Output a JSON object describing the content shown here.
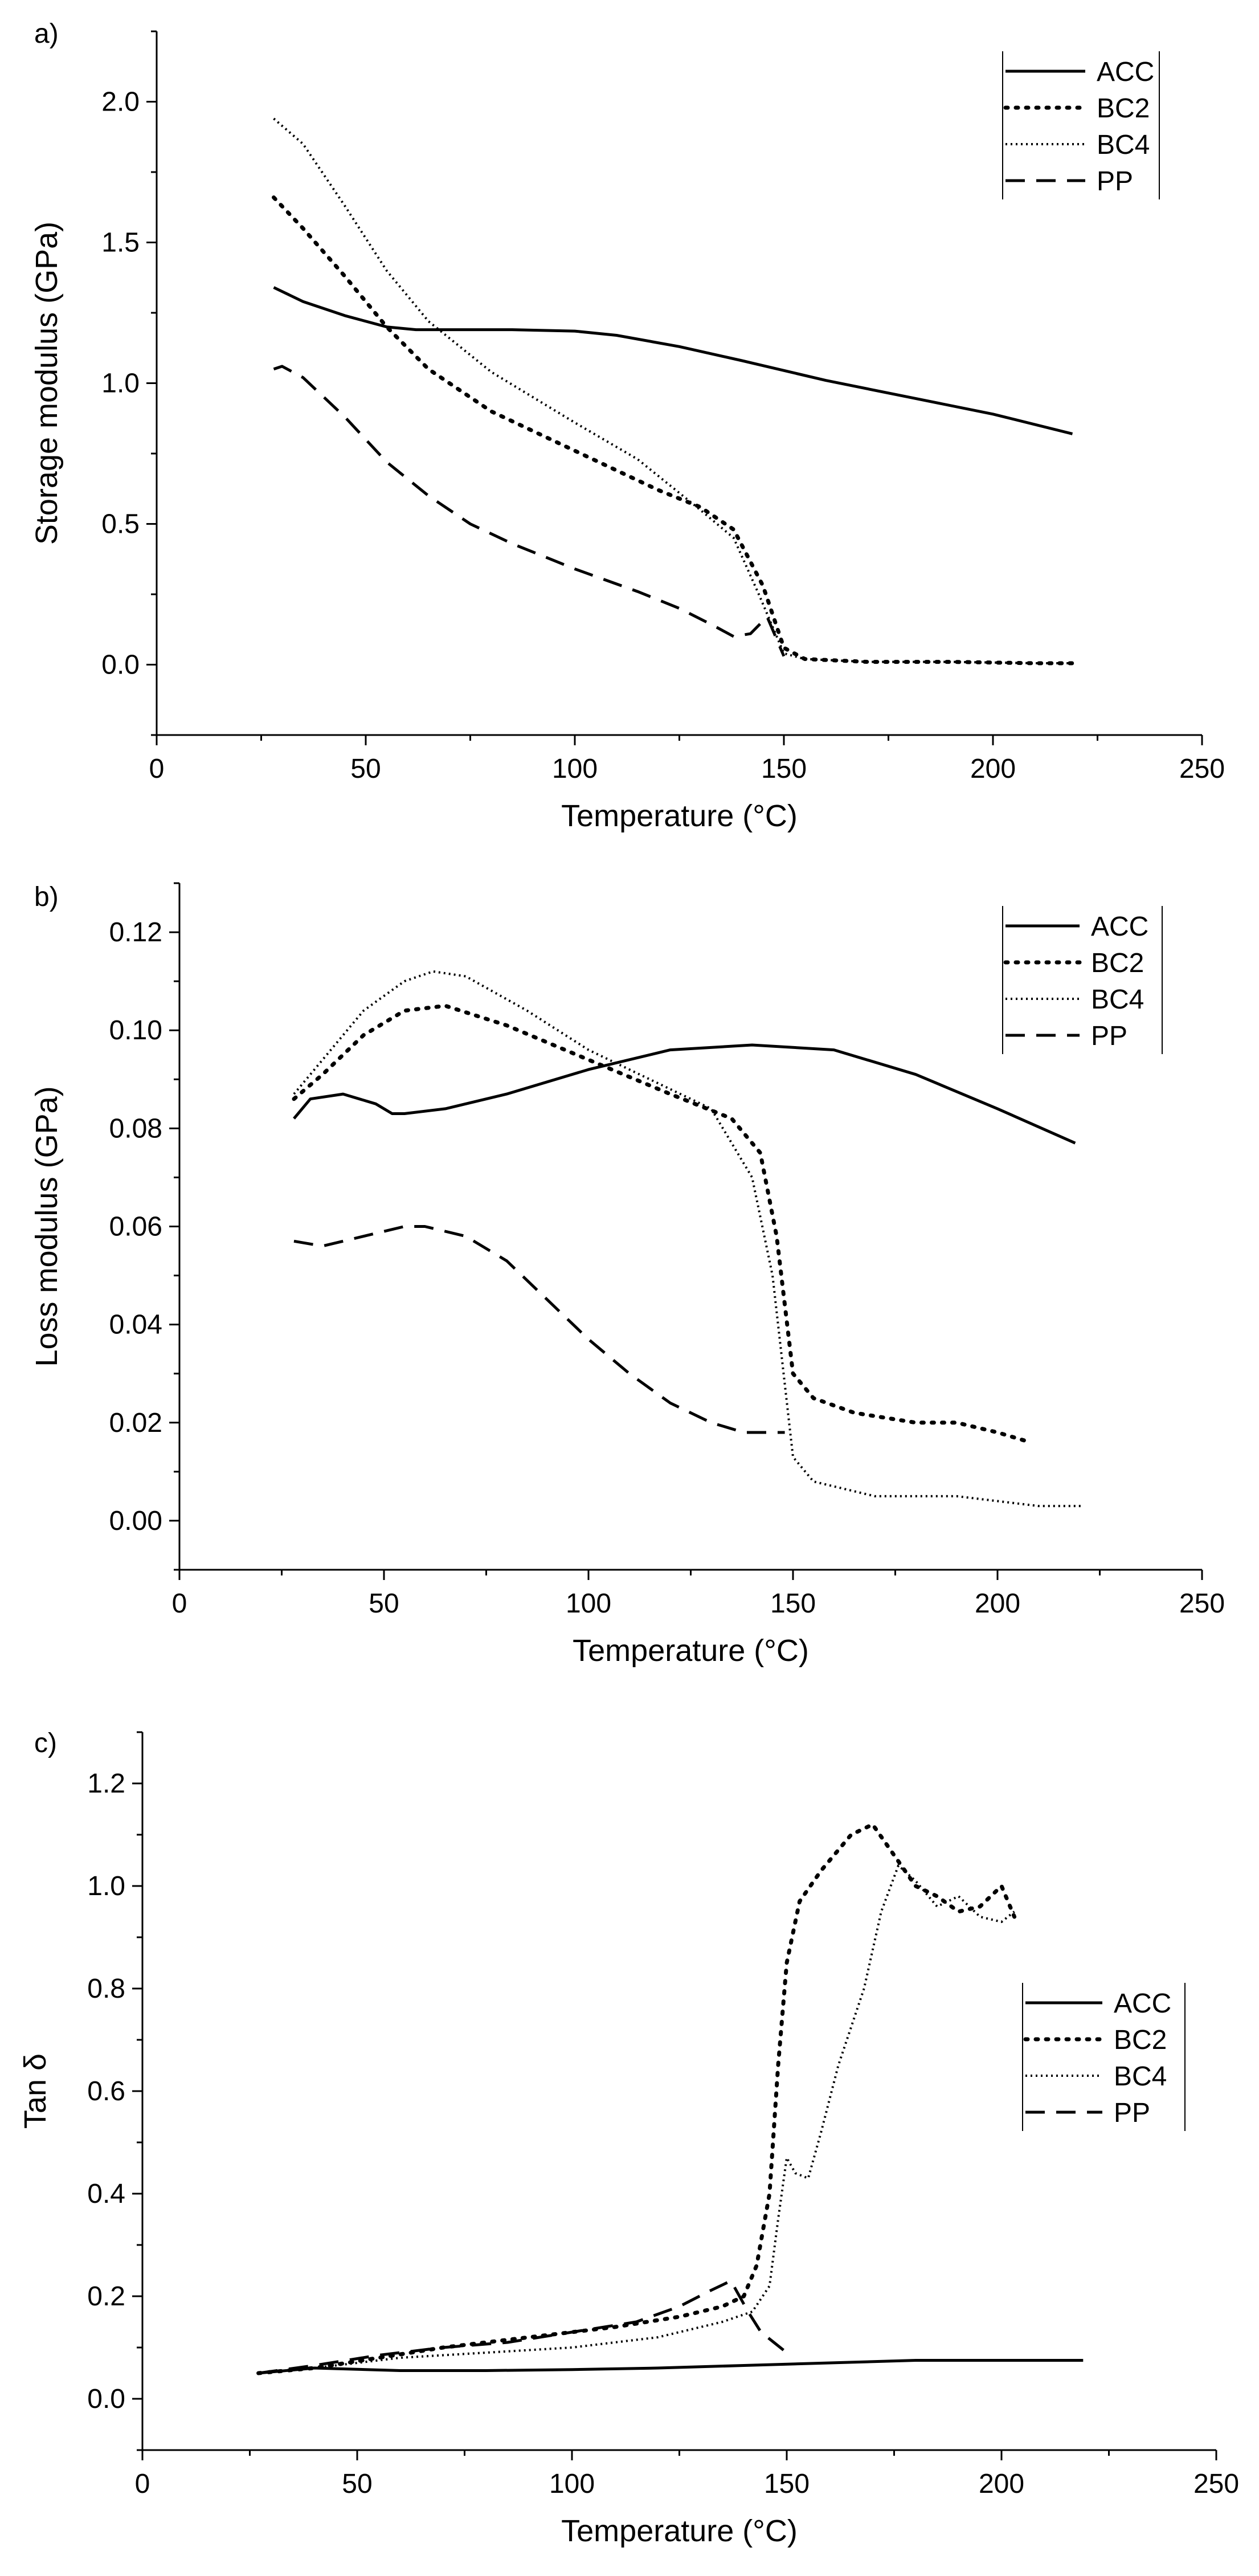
{
  "chart_data": [
    {
      "type": "line",
      "panel_label": "a)",
      "xlabel": "Temperature (°C)",
      "ylabel": "Storage modulus (GPa)",
      "xlim": [
        0,
        250
      ],
      "ylim": [
        -0.25,
        2.25
      ],
      "x_ticks": [
        0,
        50,
        100,
        150,
        200,
        250
      ],
      "x_tick_labels": [
        "0",
        "50",
        "100",
        "150",
        "200",
        "250"
      ],
      "y_ticks": [
        0.0,
        0.5,
        1.0,
        1.5,
        2.0
      ],
      "y_tick_labels": [
        "0.0",
        "0.5",
        "1.0",
        "1.5",
        "2.0"
      ],
      "grid": false,
      "legend_position": "top-right",
      "series": [
        {
          "name": "ACC",
          "style": "solid",
          "x": [
            28,
            35,
            45,
            55,
            62,
            70,
            85,
            100,
            110,
            125,
            140,
            160,
            180,
            200,
            219
          ],
          "y": [
            1.34,
            1.29,
            1.24,
            1.2,
            1.19,
            1.19,
            1.19,
            1.185,
            1.17,
            1.13,
            1.08,
            1.01,
            0.95,
            0.89,
            0.82
          ]
        },
        {
          "name": "BC2",
          "style": "dotted",
          "x": [
            28,
            35,
            45,
            55,
            65,
            80,
            100,
            120,
            130,
            138,
            145,
            150,
            155,
            170,
            190,
            210,
            220
          ],
          "y": [
            1.66,
            1.55,
            1.38,
            1.2,
            1.05,
            0.9,
            0.76,
            0.62,
            0.56,
            0.48,
            0.28,
            0.06,
            0.02,
            0.01,
            0.01,
            0.005,
            0.005
          ]
        },
        {
          "name": "BC4",
          "style": "fine-dotted",
          "x": [
            28,
            35,
            45,
            55,
            65,
            80,
            100,
            115,
            130,
            138,
            144,
            150,
            155,
            170,
            190,
            210,
            220
          ],
          "y": [
            1.94,
            1.85,
            1.63,
            1.4,
            1.22,
            1.04,
            0.86,
            0.73,
            0.55,
            0.45,
            0.25,
            0.04,
            0.02,
            0.01,
            0.01,
            0.005,
            0.005
          ]
        },
        {
          "name": "PP",
          "style": "dashed",
          "x": [
            28,
            30,
            35,
            45,
            55,
            65,
            75,
            85,
            100,
            115,
            125,
            133,
            138,
            142,
            146,
            150
          ],
          "y": [
            1.05,
            1.06,
            1.02,
            0.88,
            0.72,
            0.6,
            0.5,
            0.43,
            0.34,
            0.26,
            0.2,
            0.14,
            0.1,
            0.11,
            0.17,
            0.03
          ]
        }
      ]
    },
    {
      "type": "line",
      "panel_label": "b)",
      "xlabel": "Temperature (°C)",
      "ylabel": "Loss modulus (GPa)",
      "xlim": [
        0,
        250
      ],
      "ylim": [
        -0.01,
        0.13
      ],
      "x_ticks": [
        0,
        50,
        100,
        150,
        200,
        250
      ],
      "x_tick_labels": [
        "0",
        "50",
        "100",
        "150",
        "200",
        "250"
      ],
      "y_ticks": [
        0.0,
        0.02,
        0.04,
        0.06,
        0.08,
        0.1,
        0.12
      ],
      "y_tick_labels": [
        "0.00",
        "0.02",
        "0.04",
        "0.06",
        "0.08",
        "0.10",
        "0.12"
      ],
      "grid": false,
      "legend_position": "top-right",
      "series": [
        {
          "name": "ACC",
          "style": "solid",
          "x": [
            28,
            32,
            40,
            48,
            52,
            55,
            65,
            80,
            100,
            120,
            140,
            160,
            180,
            200,
            219
          ],
          "y": [
            0.082,
            0.086,
            0.087,
            0.085,
            0.083,
            0.083,
            0.084,
            0.087,
            0.092,
            0.096,
            0.097,
            0.096,
            0.091,
            0.084,
            0.077
          ]
        },
        {
          "name": "BC2",
          "style": "dotted",
          "x": [
            28,
            35,
            45,
            55,
            65,
            80,
            100,
            120,
            135,
            142,
            146,
            150,
            155,
            165,
            180,
            190,
            200,
            208
          ],
          "y": [
            0.086,
            0.091,
            0.099,
            0.104,
            0.105,
            0.101,
            0.094,
            0.087,
            0.082,
            0.075,
            0.058,
            0.03,
            0.025,
            0.022,
            0.02,
            0.02,
            0.018,
            0.016
          ]
        },
        {
          "name": "BC4",
          "style": "fine-dotted",
          "x": [
            28,
            35,
            45,
            55,
            62,
            70,
            85,
            100,
            115,
            130,
            140,
            145,
            150,
            155,
            170,
            190,
            210,
            221
          ],
          "y": [
            0.087,
            0.094,
            0.104,
            0.11,
            0.112,
            0.111,
            0.104,
            0.096,
            0.09,
            0.084,
            0.07,
            0.05,
            0.013,
            0.008,
            0.005,
            0.005,
            0.003,
            0.003
          ]
        },
        {
          "name": "PP",
          "style": "dashed",
          "x": [
            28,
            35,
            45,
            55,
            60,
            70,
            80,
            90,
            100,
            110,
            120,
            130,
            138,
            145,
            148
          ],
          "y": [
            0.057,
            0.056,
            0.058,
            0.06,
            0.06,
            0.058,
            0.053,
            0.045,
            0.037,
            0.03,
            0.024,
            0.02,
            0.018,
            0.018,
            0.018
          ]
        }
      ]
    },
    {
      "type": "line",
      "panel_label": "c)",
      "xlabel": "Temperature (°C)",
      "ylabel": "Tan δ",
      "xlim": [
        0,
        250
      ],
      "ylim": [
        -0.1,
        1.3
      ],
      "x_ticks": [
        0,
        50,
        100,
        150,
        200,
        250
      ],
      "x_tick_labels": [
        "0",
        "50",
        "100",
        "150",
        "200",
        "250"
      ],
      "y_ticks": [
        0.0,
        0.2,
        0.4,
        0.6,
        0.8,
        1.0,
        1.2
      ],
      "y_tick_labels": [
        "0.0",
        "0.2",
        "0.4",
        "0.6",
        "0.8",
        "1.0",
        "1.2"
      ],
      "grid": false,
      "legend_position": "center-right",
      "series": [
        {
          "name": "ACC",
          "style": "solid",
          "x": [
            27,
            40,
            60,
            80,
            100,
            120,
            140,
            160,
            180,
            200,
            219
          ],
          "y": [
            0.05,
            0.06,
            0.055,
            0.055,
            0.057,
            0.06,
            0.065,
            0.07,
            0.075,
            0.075,
            0.075
          ]
        },
        {
          "name": "BC2",
          "style": "dotted",
          "x": [
            27,
            40,
            55,
            70,
            90,
            110,
            125,
            135,
            140,
            143,
            146,
            148,
            150,
            153,
            158,
            165,
            170,
            175,
            180,
            185,
            190,
            195,
            200,
            203
          ],
          "y": [
            0.05,
            0.06,
            0.08,
            0.1,
            0.12,
            0.14,
            0.16,
            0.18,
            0.2,
            0.26,
            0.4,
            0.65,
            0.85,
            0.97,
            1.03,
            1.1,
            1.12,
            1.06,
            1.0,
            0.98,
            0.95,
            0.96,
            1.0,
            0.94
          ]
        },
        {
          "name": "BC4",
          "style": "fine-dotted",
          "x": [
            27,
            40,
            60,
            80,
            100,
            120,
            135,
            142,
            146,
            148,
            150,
            152,
            155,
            158,
            162,
            168,
            172,
            176,
            180,
            185,
            190,
            195,
            200,
            203
          ],
          "y": [
            0.05,
            0.06,
            0.08,
            0.09,
            0.1,
            0.12,
            0.15,
            0.17,
            0.22,
            0.35,
            0.47,
            0.44,
            0.43,
            0.52,
            0.65,
            0.8,
            0.95,
            1.04,
            1.01,
            0.96,
            0.98,
            0.94,
            0.93,
            0.95
          ]
        },
        {
          "name": "PP",
          "style": "dashed",
          "x": [
            27,
            40,
            55,
            70,
            85,
            100,
            115,
            125,
            132,
            137,
            141,
            144,
            147,
            150
          ],
          "y": [
            0.05,
            0.065,
            0.085,
            0.1,
            0.11,
            0.13,
            0.15,
            0.18,
            0.21,
            0.23,
            0.17,
            0.13,
            0.11,
            0.09
          ]
        }
      ]
    }
  ]
}
